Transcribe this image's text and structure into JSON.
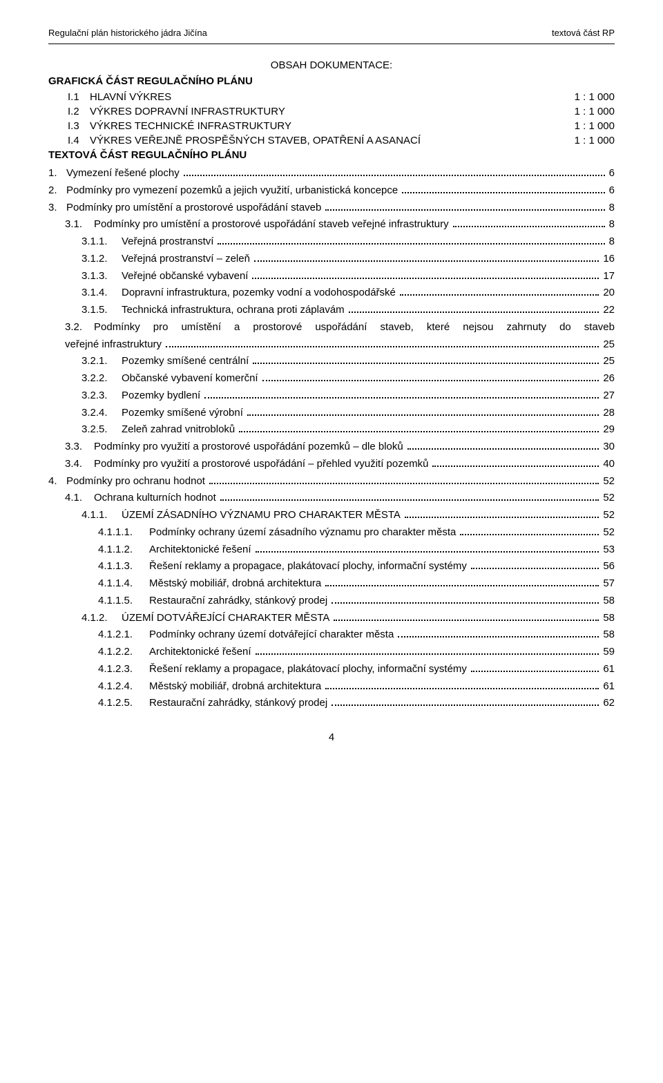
{
  "header": {
    "left": "Regulační plán historického jádra Jičína",
    "right": "textová část RP"
  },
  "doc_title": "OBSAH DOKUMENTACE:",
  "gfx": {
    "heading": "GRAFICKÁ ČÁST REGULAČNÍHO PLÁNU",
    "rows": [
      {
        "num": "I.1",
        "label": "HLAVNÍ VÝKRES",
        "scale": "1 : 1 000"
      },
      {
        "num": "I.2",
        "label": "VÝKRES DOPRAVNÍ INFRASTRUKTURY",
        "scale": "1 : 1 000"
      },
      {
        "num": "I.3",
        "label": "VÝKRES TECHNICKÉ INFRASTRUKTURY",
        "scale": "1 : 1 000"
      },
      {
        "num": "I.4",
        "label": "VÝKRES VEŘEJNĚ PROSPĚŠNÝCH STAVEB, OPATŘENÍ A ASANACÍ",
        "scale": "1 : 1 000"
      }
    ]
  },
  "txt_heading": "TEXTOVÁ ČÁST REGULAČNÍHO PLÁNU",
  "toc": [
    {
      "indent": 1,
      "num": "1.",
      "label": "Vymezení řešené plochy",
      "page": "6"
    },
    {
      "indent": 1,
      "num": "2.",
      "label": "Podmínky pro vymezení pozemků a jejich využití, urbanistická koncepce",
      "page": "6"
    },
    {
      "indent": 1,
      "num": "3.",
      "label": "Podmínky pro umístění a prostorové uspořádání staveb",
      "page": "8"
    },
    {
      "indent": 2,
      "num": "3.1.",
      "label": "Podmínky pro umístění a prostorové uspořádání staveb veřejné infrastruktury",
      "page": "8"
    },
    {
      "indent": 3,
      "num": "3.1.1.",
      "label": "Veřejná prostranství",
      "page": "8"
    },
    {
      "indent": 3,
      "num": "3.1.2.",
      "label": "Veřejná prostranství – zeleň",
      "page": "16"
    },
    {
      "indent": 3,
      "num": "3.1.3.",
      "label": "Veřejné občanské vybavení",
      "page": "17"
    },
    {
      "indent": 3,
      "num": "3.1.4.",
      "label": "Dopravní infrastruktura, pozemky vodní a vodohospodářské",
      "page": "20"
    },
    {
      "indent": 3,
      "num": "3.1.5.",
      "label": "Technická infrastruktura, ochrana proti záplavám",
      "page": "22"
    },
    {
      "indent": 2,
      "num": "3.2.",
      "label_line1": "Podmínky pro umístění a prostorové uspořádání staveb, které nejsou zahrnuty do staveb",
      "label_line2": "veřejné infrastruktury",
      "page": "25",
      "wrap": true
    },
    {
      "indent": 3,
      "num": "3.2.1.",
      "label": "Pozemky smíšené centrální",
      "page": "25"
    },
    {
      "indent": 3,
      "num": "3.2.2.",
      "label": "Občanské vybavení komerční",
      "page": "26"
    },
    {
      "indent": 3,
      "num": "3.2.3.",
      "label": "Pozemky bydlení",
      "page": "27"
    },
    {
      "indent": 3,
      "num": "3.2.4.",
      "label": "Pozemky smíšené výrobní",
      "page": "28"
    },
    {
      "indent": 3,
      "num": "3.2.5.",
      "label": "Zeleň zahrad vnitrobloků",
      "page": "29"
    },
    {
      "indent": 2,
      "num": "3.3.",
      "label": "Podmínky pro využití a prostorové uspořádání pozemků – dle bloků",
      "page": "30"
    },
    {
      "indent": 2,
      "num": "3.4.",
      "label": "Podmínky pro využití a prostorové uspořádání – přehled využití pozemků",
      "page": "40"
    },
    {
      "indent": 1,
      "num": "4.",
      "label": "Podmínky pro ochranu hodnot",
      "page": "52"
    },
    {
      "indent": 2,
      "num": "4.1.",
      "label": "Ochrana kulturních hodnot",
      "page": "52"
    },
    {
      "indent": 3,
      "num": "4.1.1.",
      "label": "ÚZEMÍ ZÁSADNÍHO VÝZNAMU PRO CHARAKTER MĚSTA",
      "page": "52"
    },
    {
      "indent": 4,
      "num": "4.1.1.1.",
      "label": "Podmínky ochrany území zásadního významu pro charakter města",
      "page": "52"
    },
    {
      "indent": 4,
      "num": "4.1.1.2.",
      "label": "Architektonické řešení",
      "page": "53"
    },
    {
      "indent": 4,
      "num": "4.1.1.3.",
      "label": "Řešení reklamy a propagace, plakátovací plochy, informační systémy",
      "page": "56"
    },
    {
      "indent": 4,
      "num": "4.1.1.4.",
      "label": "Městský mobiliář, drobná architektura",
      "page": "57"
    },
    {
      "indent": 4,
      "num": "4.1.1.5.",
      "label": "Restaurační zahrádky, stánkový prodej",
      "page": "58"
    },
    {
      "indent": 3,
      "num": "4.1.2.",
      "label": "ÚZEMÍ DOTVÁŘEJÍCÍ CHARAKTER MĚSTA",
      "page": "58"
    },
    {
      "indent": 4,
      "num": "4.1.2.1.",
      "label": "Podmínky ochrany území dotvářející charakter města",
      "page": "58"
    },
    {
      "indent": 4,
      "num": "4.1.2.2.",
      "label": "Architektonické řešení",
      "page": "59"
    },
    {
      "indent": 4,
      "num": "4.1.2.3.",
      "label": "Řešení reklamy a propagace, plakátovací plochy, informační systémy",
      "page": "61"
    },
    {
      "indent": 4,
      "num": "4.1.2.4.",
      "label": "Městský mobiliář, drobná architektura",
      "page": "61"
    },
    {
      "indent": 4,
      "num": "4.1.2.5.",
      "label": "Restaurační zahrádky, stánkový prodej",
      "page": "62"
    }
  ],
  "page_number": "4",
  "num_widths": {
    "1": "26px",
    "2": "42px",
    "3": "58px",
    "4": "74px"
  }
}
